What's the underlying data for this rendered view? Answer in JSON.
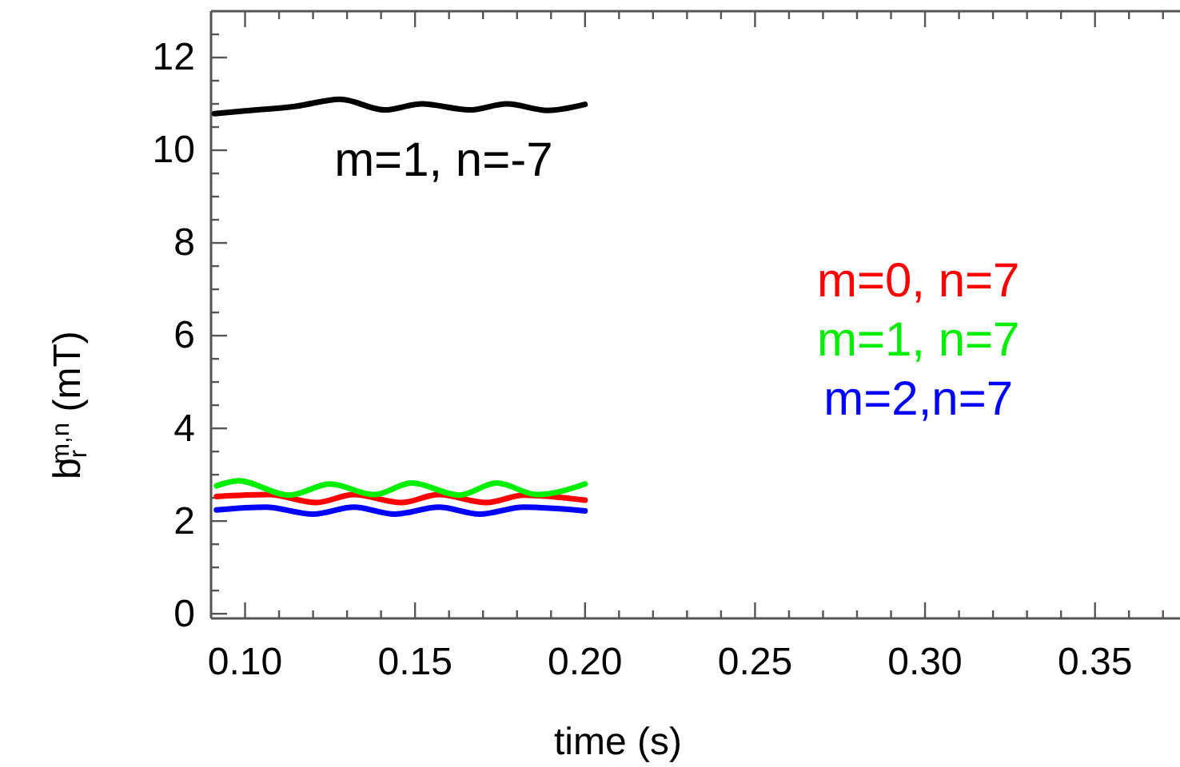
{
  "chart_data": {
    "type": "line",
    "xlabel": "time (s)",
    "ylabel": "b$_{r}$$^{m,n}$ (mT)",
    "xlim": [
      0.09,
      0.375
    ],
    "ylim": [
      -0.1,
      13
    ],
    "xticks": [
      {
        "value": 0.1,
        "label": "0.10"
      },
      {
        "value": 0.11,
        "label": null
      },
      {
        "value": 0.12,
        "label": null
      },
      {
        "value": 0.13,
        "label": null
      },
      {
        "value": 0.14,
        "label": null
      },
      {
        "value": 0.15,
        "label": "0.15"
      },
      {
        "value": 0.16,
        "label": null
      },
      {
        "value": 0.17,
        "label": null
      },
      {
        "value": 0.18,
        "label": null
      },
      {
        "value": 0.19,
        "label": null
      },
      {
        "value": 0.2,
        "label": "0.20"
      },
      {
        "value": 0.21,
        "label": null
      },
      {
        "value": 0.22,
        "label": null
      },
      {
        "value": 0.23,
        "label": null
      },
      {
        "value": 0.24,
        "label": null
      },
      {
        "value": 0.25,
        "label": "0.25"
      },
      {
        "value": 0.26,
        "label": null
      },
      {
        "value": 0.27,
        "label": null
      },
      {
        "value": 0.28,
        "label": null
      },
      {
        "value": 0.29,
        "label": null
      },
      {
        "value": 0.3,
        "label": "0.30"
      },
      {
        "value": 0.31,
        "label": null
      },
      {
        "value": 0.32,
        "label": null
      },
      {
        "value": 0.33,
        "label": null
      },
      {
        "value": 0.34,
        "label": null
      },
      {
        "value": 0.35,
        "label": "0.35"
      },
      {
        "value": 0.36,
        "label": null
      },
      {
        "value": 0.37,
        "label": null
      }
    ],
    "yticks": [
      0,
      {
        "value": 0.5,
        "label": null
      },
      {
        "value": 1,
        "label": null
      },
      {
        "value": 1.5,
        "label": null
      },
      2,
      {
        "value": 2.5,
        "label": null
      },
      {
        "value": 3,
        "label": null
      },
      {
        "value": 3.5,
        "label": null
      },
      4,
      {
        "value": 4.5,
        "label": null
      },
      {
        "value": 5,
        "label": null
      },
      {
        "value": 5.5,
        "label": null
      },
      6,
      {
        "value": 6.5,
        "label": null
      },
      {
        "value": 7,
        "label": null
      },
      {
        "value": 7.5,
        "label": null
      },
      8,
      {
        "value": 8.5,
        "label": null
      },
      {
        "value": 9,
        "label": null
      },
      {
        "value": 9.5,
        "label": null
      },
      10,
      {
        "value": 10.5,
        "label": null
      },
      {
        "value": 11,
        "label": null
      },
      {
        "value": 11.5,
        "label": null
      },
      12,
      {
        "value": 12.5,
        "label": null
      }
    ],
    "grid": false,
    "legend": "right",
    "line_style": "solid",
    "marker": "none",
    "annotations": [
      "m=1, n=-7"
    ],
    "series": [
      {
        "color": "#000000",
        "x": [
          0.091,
          0.1,
          0.115,
          0.128,
          0.141,
          0.152,
          0.166,
          0.177,
          0.189,
          0.2
        ],
        "values": [
          10.79,
          10.85,
          10.95,
          11.1,
          10.87,
          11.0,
          10.87,
          11.0,
          10.86,
          10.99
        ]
      },
      {
        "name": "m=0, n=7",
        "color": "#ff0000",
        "x": [
          0.0916,
          0.107,
          0.121,
          0.132,
          0.146,
          0.157,
          0.171,
          0.182,
          0.2
        ],
        "values": [
          2.53,
          2.57,
          2.4,
          2.57,
          2.4,
          2.57,
          2.4,
          2.56,
          2.45
        ]
      },
      {
        "name": "m=1, n=7",
        "color": "#00ee00",
        "x": [
          0.0916,
          0.098,
          0.113,
          0.125,
          0.138,
          0.149,
          0.163,
          0.174,
          0.186,
          0.2
        ],
        "values": [
          2.76,
          2.87,
          2.56,
          2.8,
          2.57,
          2.82,
          2.56,
          2.82,
          2.57,
          2.8
        ]
      },
      {
        "name": "m=2,n=7",
        "color": "#0000ff",
        "x": [
          0.0916,
          0.106,
          0.12,
          0.132,
          0.144,
          0.157,
          0.169,
          0.182,
          0.2
        ],
        "values": [
          2.24,
          2.3,
          2.15,
          2.3,
          2.15,
          2.3,
          2.15,
          2.3,
          2.22
        ]
      }
    ]
  }
}
